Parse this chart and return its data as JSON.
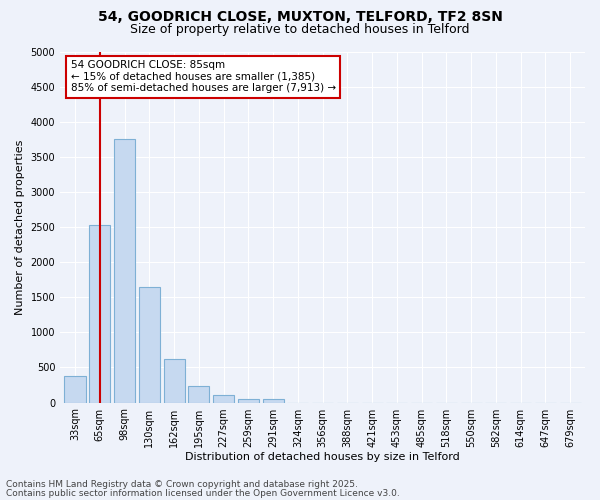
{
  "title_line1": "54, GOODRICH CLOSE, MUXTON, TELFORD, TF2 8SN",
  "title_line2": "Size of property relative to detached houses in Telford",
  "xlabel": "Distribution of detached houses by size in Telford",
  "ylabel": "Number of detached properties",
  "categories": [
    "33sqm",
    "65sqm",
    "98sqm",
    "130sqm",
    "162sqm",
    "195sqm",
    "227sqm",
    "259sqm",
    "291sqm",
    "324sqm",
    "356sqm",
    "388sqm",
    "421sqm",
    "453sqm",
    "485sqm",
    "518sqm",
    "550sqm",
    "582sqm",
    "614sqm",
    "647sqm",
    "679sqm"
  ],
  "values": [
    380,
    2530,
    3760,
    1650,
    620,
    230,
    105,
    50,
    45,
    0,
    0,
    0,
    0,
    0,
    0,
    0,
    0,
    0,
    0,
    0,
    0
  ],
  "bar_color": "#c6d9f0",
  "bar_edge_color": "#7eb0d5",
  "red_line_x": 1.0,
  "red_line_color": "#cc0000",
  "ylim": [
    0,
    5000
  ],
  "yticks": [
    0,
    500,
    1000,
    1500,
    2000,
    2500,
    3000,
    3500,
    4000,
    4500,
    5000
  ],
  "annotation_text": "54 GOODRICH CLOSE: 85sqm\n← 15% of detached houses are smaller (1,385)\n85% of semi-detached houses are larger (7,913) →",
  "annotation_box_color": "#ffffff",
  "annotation_box_edge": "#cc0000",
  "footer_line1": "Contains HM Land Registry data © Crown copyright and database right 2025.",
  "footer_line2": "Contains public sector information licensed under the Open Government Licence v3.0.",
  "bg_color": "#eef2fa",
  "grid_color": "#ffffff",
  "title_fontsize": 10,
  "subtitle_fontsize": 9,
  "axis_label_fontsize": 8,
  "tick_fontsize": 7,
  "footer_fontsize": 6.5
}
